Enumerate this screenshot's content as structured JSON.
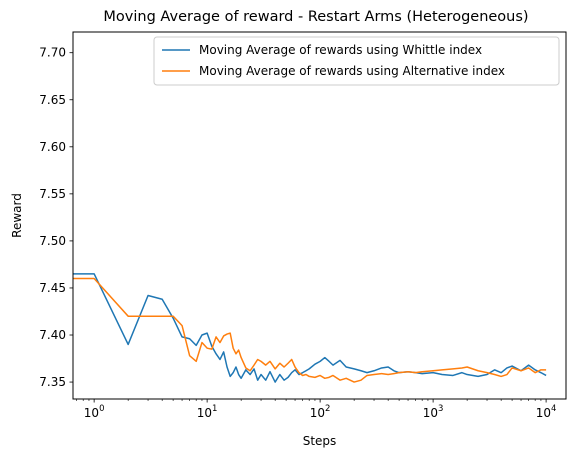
{
  "chart_data": {
    "type": "line",
    "title": "Moving Average of reward - Restart Arms (Heterogeneous)",
    "xlabel": "Steps",
    "ylabel": "Reward",
    "xscale": "log",
    "xlim": [
      0.65,
      15000
    ],
    "ylim": [
      7.332,
      7.722
    ],
    "xticks": [
      {
        "value": 1,
        "base": "10",
        "exp": "0"
      },
      {
        "value": 10,
        "base": "10",
        "exp": "1"
      },
      {
        "value": 100,
        "base": "10",
        "exp": "2"
      },
      {
        "value": 1000,
        "base": "10",
        "exp": "3"
      },
      {
        "value": 10000,
        "base": "10",
        "exp": "4"
      }
    ],
    "yticks": [
      "7.35",
      "7.40",
      "7.45",
      "7.50",
      "7.55",
      "7.60",
      "7.65",
      "7.70"
    ],
    "grid": false,
    "legend_position": "top-right",
    "series": [
      {
        "name": "Moving Average of rewards using Whittle index",
        "color": "#1f77b4",
        "x": [
          0.5,
          1,
          2,
          3,
          4,
          5,
          6,
          7,
          8,
          9,
          10,
          11,
          12,
          13,
          14,
          15,
          16,
          17,
          18,
          19,
          20,
          22,
          24,
          26,
          28,
          30,
          33,
          36,
          40,
          44,
          48,
          52,
          56,
          60,
          65,
          70,
          75,
          80,
          90,
          100,
          110,
          120,
          130,
          150,
          170,
          200,
          230,
          260,
          300,
          350,
          400,
          450,
          500,
          600,
          700,
          800,
          1000,
          1200,
          1500,
          1800,
          2000,
          2500,
          3000,
          3500,
          4000,
          4500,
          5000,
          6000,
          7000,
          8000,
          9000,
          10000
        ],
        "y": [
          7.465,
          7.465,
          7.39,
          7.442,
          7.438,
          7.418,
          7.398,
          7.396,
          7.389,
          7.4,
          7.402,
          7.388,
          7.38,
          7.374,
          7.382,
          7.366,
          7.356,
          7.36,
          7.366,
          7.358,
          7.354,
          7.363,
          7.358,
          7.364,
          7.352,
          7.358,
          7.352,
          7.361,
          7.35,
          7.358,
          7.352,
          7.355,
          7.36,
          7.363,
          7.358,
          7.36,
          7.362,
          7.364,
          7.369,
          7.372,
          7.376,
          7.372,
          7.368,
          7.373,
          7.366,
          7.364,
          7.362,
          7.36,
          7.362,
          7.365,
          7.366,
          7.362,
          7.36,
          7.361,
          7.36,
          7.359,
          7.36,
          7.358,
          7.357,
          7.36,
          7.358,
          7.356,
          7.358,
          7.363,
          7.36,
          7.365,
          7.367,
          7.362,
          7.368,
          7.363,
          7.36,
          7.357
        ]
      },
      {
        "name": "Moving Average of rewards using Alternative index",
        "color": "#ff7f0e",
        "x": [
          0.5,
          1,
          2,
          3,
          4,
          5,
          6,
          7,
          8,
          9,
          10,
          11,
          12,
          13,
          14,
          15,
          16,
          17,
          18,
          19,
          20,
          22,
          24,
          26,
          28,
          30,
          33,
          36,
          40,
          44,
          48,
          52,
          56,
          60,
          65,
          70,
          75,
          80,
          90,
          100,
          110,
          120,
          130,
          150,
          170,
          200,
          230,
          260,
          300,
          350,
          400,
          450,
          500,
          600,
          700,
          800,
          1000,
          1200,
          1500,
          1800,
          2000,
          2500,
          3000,
          3500,
          4000,
          4500,
          5000,
          6000,
          7000,
          8000,
          9000,
          10000
        ],
        "y": [
          7.46,
          7.46,
          7.42,
          7.42,
          7.42,
          7.42,
          7.41,
          7.378,
          7.372,
          7.392,
          7.386,
          7.385,
          7.398,
          7.392,
          7.399,
          7.401,
          7.402,
          7.386,
          7.38,
          7.384,
          7.376,
          7.365,
          7.362,
          7.368,
          7.374,
          7.372,
          7.368,
          7.372,
          7.364,
          7.37,
          7.366,
          7.37,
          7.374,
          7.366,
          7.36,
          7.357,
          7.358,
          7.356,
          7.355,
          7.357,
          7.354,
          7.355,
          7.357,
          7.352,
          7.354,
          7.35,
          7.352,
          7.357,
          7.358,
          7.359,
          7.358,
          7.359,
          7.36,
          7.361,
          7.36,
          7.361,
          7.362,
          7.363,
          7.364,
          7.365,
          7.366,
          7.362,
          7.36,
          7.358,
          7.356,
          7.358,
          7.365,
          7.362,
          7.365,
          7.36,
          7.363,
          7.363
        ]
      }
    ]
  }
}
